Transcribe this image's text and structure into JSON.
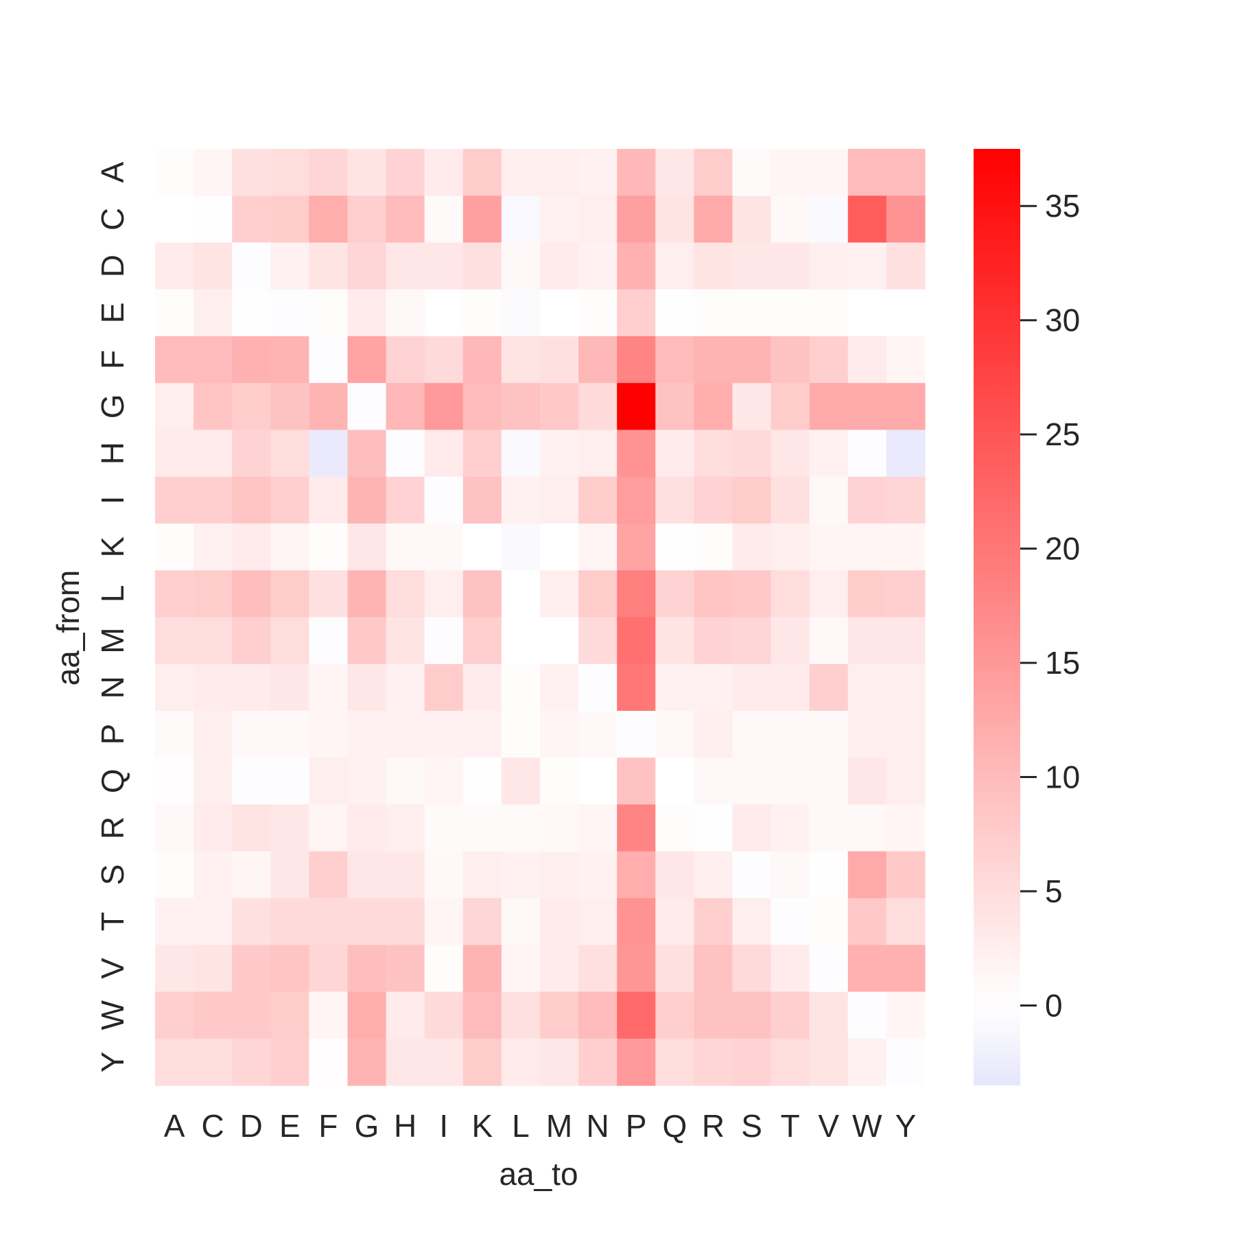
{
  "chart_data": {
    "type": "heatmap",
    "title": "",
    "xlabel": "aa_to",
    "ylabel": "aa_from",
    "x_categories": [
      "A",
      "C",
      "D",
      "E",
      "F",
      "G",
      "H",
      "I",
      "K",
      "L",
      "M",
      "N",
      "P",
      "Q",
      "R",
      "S",
      "T",
      "V",
      "W",
      "Y"
    ],
    "y_categories": [
      "A",
      "C",
      "D",
      "E",
      "F",
      "G",
      "H",
      "I",
      "K",
      "L",
      "M",
      "N",
      "P",
      "Q",
      "R",
      "S",
      "T",
      "V",
      "W",
      "Y"
    ],
    "colorbar": {
      "vmin": -3.5,
      "vmax": 37.5,
      "center": 0,
      "ticks": [
        0,
        5,
        10,
        15,
        20,
        25,
        30,
        35
      ],
      "tick_labels": [
        "0",
        "5",
        "10",
        "15",
        "20",
        "25",
        "30",
        "35"
      ],
      "low_color": "#e6e6fb",
      "mid_color": "#ffffff",
      "high_color": "#ff0000"
    },
    "values": [
      [
        0.5,
        1.5,
        4.5,
        5,
        6,
        4,
        6.5,
        3,
        7.5,
        2.5,
        2.5,
        2,
        10.5,
        3.5,
        7.5,
        0.8,
        1.5,
        1.5,
        10,
        10
      ],
      [
        0,
        -0.2,
        7,
        7.5,
        12,
        7,
        10,
        0.8,
        14,
        -1,
        2,
        2.5,
        14,
        4,
        12.5,
        4,
        1,
        -0.8,
        24,
        16
      ],
      [
        3,
        4,
        -0.3,
        2,
        4,
        6,
        3.5,
        3.5,
        4.5,
        1,
        3,
        2,
        11.5,
        2.5,
        4,
        3.5,
        3.5,
        2.5,
        2,
        4.5
      ],
      [
        0.5,
        2.5,
        0.2,
        -0.3,
        0.5,
        3,
        1,
        0,
        0.5,
        -0.5,
        0,
        0.5,
        7,
        -0.2,
        0.5,
        0.5,
        0.5,
        0.5,
        0,
        0
      ],
      [
        10,
        10,
        11.5,
        11,
        -0.3,
        13.5,
        6.5,
        5.5,
        10.5,
        4,
        4.5,
        10.5,
        18,
        10,
        11,
        11,
        9,
        7,
        3,
        1.5
      ],
      [
        2.5,
        8.5,
        7.5,
        9,
        11,
        -0.3,
        10.5,
        15,
        10,
        9,
        8,
        5.5,
        37.5,
        9,
        12,
        3.5,
        7.5,
        12.5,
        12.5,
        12.5
      ],
      [
        3,
        3,
        6.5,
        5,
        -3,
        9.5,
        -0.3,
        3,
        7,
        -0.8,
        2,
        2.5,
        16,
        3,
        5,
        5.5,
        3.5,
        2,
        -0.3,
        -3
      ],
      [
        7,
        7,
        8.5,
        7,
        3,
        11,
        6.5,
        -0.3,
        9,
        2,
        2.5,
        7.5,
        14.5,
        4.5,
        6.5,
        7.5,
        4.5,
        1,
        6.5,
        6
      ],
      [
        0.5,
        2,
        3,
        1.5,
        0.5,
        3.5,
        1,
        1,
        0,
        -0.8,
        0,
        1.5,
        13.5,
        -0.2,
        0.5,
        3,
        2.5,
        1.5,
        1.5,
        1.5
      ],
      [
        7,
        7.5,
        9.5,
        7.5,
        4.5,
        11,
        5,
        2.5,
        9,
        0,
        2.5,
        7.5,
        19,
        6.5,
        8.5,
        8,
        5,
        2.5,
        7.5,
        7
      ],
      [
        5,
        5,
        7,
        5,
        -0.3,
        8,
        4,
        -0.3,
        7,
        0,
        0,
        5.5,
        21,
        4,
        6.5,
        6,
        3.5,
        1,
        3.5,
        3.5
      ],
      [
        2.5,
        3,
        3,
        3.5,
        1.5,
        3.5,
        2,
        7.5,
        3,
        0.5,
        2,
        -0.3,
        20,
        2,
        2,
        3,
        3,
        7,
        2.5,
        2.5
      ],
      [
        0.8,
        2.5,
        1,
        1,
        1.5,
        2,
        2,
        2,
        2,
        0.5,
        1.5,
        1,
        -0.3,
        1,
        2.5,
        1,
        1,
        1,
        2.5,
        2.5
      ],
      [
        0.3,
        2.5,
        -0.3,
        -0.3,
        2.5,
        2,
        1,
        1.5,
        -0.2,
        3.5,
        0.5,
        0,
        9,
        0,
        1,
        1,
        1,
        1,
        3.5,
        2.5
      ],
      [
        1,
        3,
        4,
        3.5,
        1.5,
        3,
        2.5,
        0.8,
        0.8,
        0.8,
        1,
        1.5,
        18,
        0.5,
        -0.2,
        3,
        2,
        1,
        1,
        1.5
      ],
      [
        0.5,
        2,
        1.5,
        3.5,
        7,
        3.5,
        3.5,
        1,
        2.5,
        2,
        2.5,
        2,
        12,
        3.5,
        2.5,
        -0.3,
        1,
        -0.2,
        12.5,
        8
      ],
      [
        2,
        2,
        4.5,
        5.5,
        5.5,
        5.5,
        5.5,
        1.5,
        6,
        1,
        3,
        2.5,
        16,
        3,
        7,
        2.5,
        -0.3,
        0.5,
        8,
        5
      ],
      [
        3.5,
        4,
        8,
        8.5,
        6,
        9.5,
        9,
        0.5,
        11,
        1.5,
        3,
        4.5,
        15.5,
        4.5,
        9,
        5.5,
        3,
        -0.3,
        11.5,
        11.5
      ],
      [
        7,
        8,
        8,
        7.5,
        1.5,
        12,
        3,
        5.5,
        10,
        4.5,
        7.5,
        10,
        22,
        7,
        9,
        9,
        7,
        4,
        -0.3,
        1.5
      ],
      [
        5,
        5,
        6,
        7,
        0.3,
        11,
        3.5,
        3.5,
        7.5,
        3,
        3.5,
        7,
        15,
        5,
        6,
        6.5,
        5,
        4,
        2,
        -0.3
      ]
    ]
  }
}
